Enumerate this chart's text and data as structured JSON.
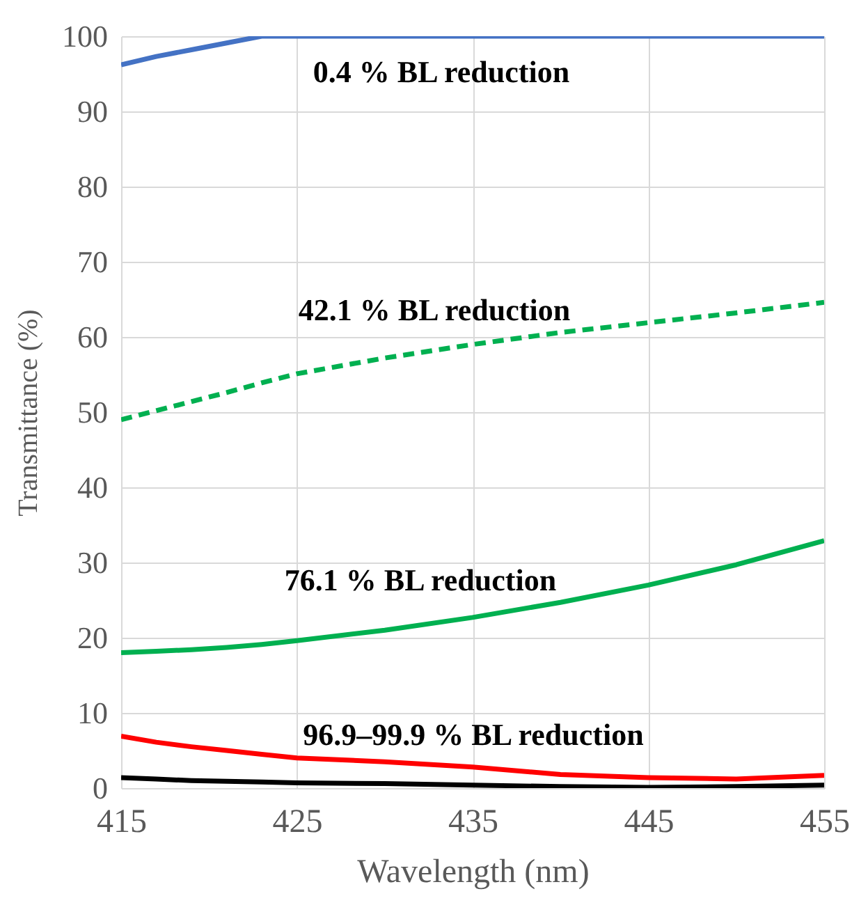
{
  "chart_data": {
    "type": "line",
    "xlabel": "Wavelength (nm)",
    "ylabel": "Transmittance (%)",
    "x": [
      415,
      417,
      419,
      421,
      423,
      425,
      430,
      435,
      440,
      445,
      450,
      455
    ],
    "series": [
      {
        "color": "#4472c4",
        "line_style": "solid",
        "values": [
          96.2,
          97.3,
          98.2,
          99.1,
          100,
          100,
          100,
          100,
          100,
          100,
          100,
          100
        ]
      },
      {
        "color": "#00b050",
        "line_style": "dashed",
        "values": [
          49,
          50.2,
          51.4,
          52.6,
          53.9,
          55.1,
          57.2,
          59.0,
          60.6,
          61.9,
          63.2,
          64.6
        ]
      },
      {
        "color": "#00b050",
        "line_style": "solid",
        "values": [
          18.0,
          18.2,
          18.4,
          18.7,
          19.1,
          19.6,
          21.0,
          22.7,
          24.7,
          27.0,
          29.7,
          32.9
        ]
      },
      {
        "color": "#ff0000",
        "line_style": "solid",
        "values": [
          6.9,
          6.1,
          5.5,
          5.0,
          4.5,
          4.0,
          3.5,
          2.8,
          1.8,
          1.4,
          1.2,
          1.7
        ]
      },
      {
        "color": "#000000",
        "line_style": "solid",
        "values": [
          1.4,
          1.2,
          1.0,
          0.9,
          0.8,
          0.7,
          0.6,
          0.4,
          0.2,
          0.1,
          0.2,
          0.4
        ]
      }
    ],
    "annotations": [
      "0.4 % BL reduction",
      "42.1 % BL reduction",
      "76.1 % BL reduction",
      "96.9–99.9 % BL reduction"
    ],
    "xlim": [
      415,
      455
    ],
    "xticks": [
      415,
      425,
      435,
      445,
      455
    ],
    "ylim": [
      0,
      100
    ],
    "yticks": [
      0,
      10,
      20,
      30,
      40,
      50,
      60,
      70,
      80,
      90,
      100
    ],
    "grid": true,
    "marker": "none"
  }
}
